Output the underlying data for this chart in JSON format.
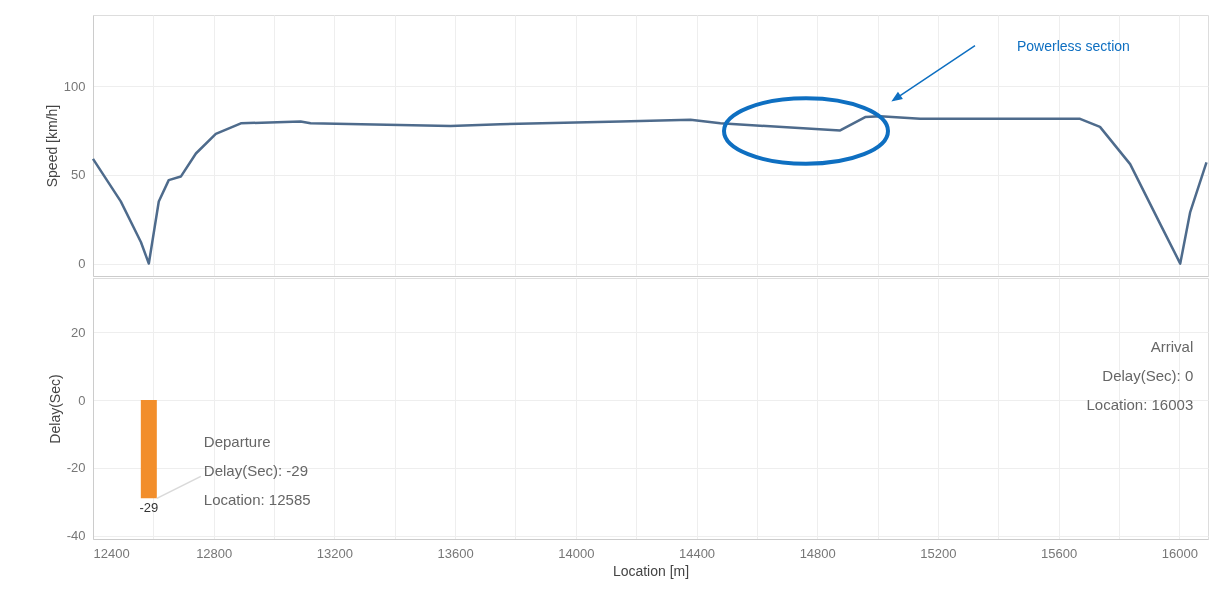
{
  "chart_data": [
    {
      "type": "line",
      "ylabel": "Speed [km/h]",
      "tick_labels": "y",
      "grid": true,
      "series": [
        {
          "color": "#4e6b8c",
          "x": [
            12400,
            12492,
            12559,
            12585,
            12618,
            12651,
            12691,
            12741,
            12807,
            12890,
            13088,
            13121,
            13585,
            13750,
            14148,
            14380,
            14479,
            14876,
            14959,
            15009,
            15141,
            15671,
            15737,
            15837,
            15936,
            16003,
            16036,
            16090
          ],
          "values": [
            59,
            35,
            12,
            0,
            35,
            47,
            49,
            62,
            73,
            79,
            80,
            79,
            77.5,
            78.5,
            80,
            81,
            79,
            75,
            82.5,
            83,
            81.5,
            81.5,
            77,
            56,
            22.5,
            0,
            29,
            57
          ]
        }
      ],
      "xlim": [
        12400,
        16095
      ],
      "ylim": [
        -7,
        140
      ],
      "yticks": [
        0,
        50,
        100
      ],
      "xticks": [
        12400,
        {
          "value": 12600,
          "label": null
        },
        12800,
        {
          "value": 13000,
          "label": null
        },
        13200,
        {
          "value": 13400,
          "label": null
        },
        13600,
        {
          "value": 13800,
          "label": null
        },
        14000,
        {
          "value": 14200,
          "label": null
        },
        14400,
        {
          "value": 14600,
          "label": null
        },
        14800,
        {
          "value": 15000,
          "label": null
        },
        15200,
        {
          "value": 15400,
          "label": null
        },
        15600,
        {
          "value": 15800,
          "label": null
        },
        16000
      ],
      "annotations": [
        "Powerless section"
      ]
    },
    {
      "type": "bar",
      "xlabel": "Location [m]",
      "ylabel": "Delay(Sec)",
      "grid": true,
      "x": [
        12585,
        16003
      ],
      "values": [
        -29,
        0
      ],
      "value_labels": [
        "-29",
        null
      ],
      "colors": [
        "#f28e2b",
        "#f28e2b"
      ],
      "xlim": [
        12400,
        16095
      ],
      "ylim": [
        -41,
        36
      ],
      "yticks": [
        -40,
        -20,
        0,
        20
      ],
      "xticks": [
        12400,
        {
          "value": 12600,
          "label": null
        },
        12800,
        {
          "value": 13000,
          "label": null
        },
        13200,
        {
          "value": 13400,
          "label": null
        },
        13600,
        {
          "value": 13800,
          "label": null
        },
        14000,
        {
          "value": 14200,
          "label": null
        },
        14400,
        {
          "value": 14600,
          "label": null
        },
        14800,
        {
          "value": 15000,
          "label": null
        },
        15200,
        {
          "value": 15400,
          "label": null
        },
        15600,
        {
          "value": 15800,
          "label": null
        },
        16000
      ],
      "annotations": [
        {
          "text": "Departure\nDelay(Sec): -29\nLocation: 12585",
          "x": 12585,
          "y": -29
        },
        {
          "text": "Arrival\nDelay(Sec): 0\nLocation: 16003",
          "x": 16003,
          "y": 0
        }
      ]
    }
  ]
}
